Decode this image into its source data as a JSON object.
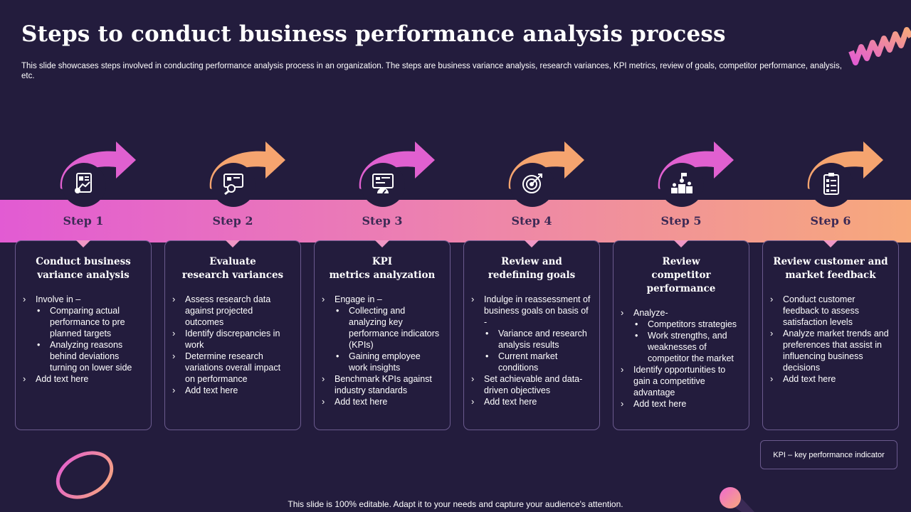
{
  "title": "Steps to conduct business performance analysis process",
  "subtitle": "This slide showcases steps involved in conducting performance analysis process in an organization. The steps are business variance analysis, research variances, KPI metrics, review of goals, competitor performance, analysis, etc.",
  "colors": {
    "background": "#231c3d",
    "band_start": "#e25bd3",
    "band_end": "#f7a97b",
    "arrow_pink": "#e060d0",
    "arrow_orange": "#f5a46f"
  },
  "steps": [
    {
      "label": "Step 1",
      "icon": "report-chart-icon",
      "title_line1": "Conduct business",
      "title_line2": "variance analysis",
      "items": [
        {
          "type": "li",
          "text": "Involve  in –"
        },
        {
          "type": "sub",
          "text": "Comparing actual performance to pre planned targets"
        },
        {
          "type": "sub",
          "text": "Analyzing reasons behind deviations turning on lower side"
        },
        {
          "type": "li",
          "text": "Add text here"
        }
      ]
    },
    {
      "label": "Step 2",
      "icon": "research-magnifier-icon",
      "title_line1": "Evaluate",
      "title_line2": "research variances",
      "items": [
        {
          "type": "li",
          "text": "Assess research data against projected outcomes"
        },
        {
          "type": "li",
          "text": "Identify discrepancies in work"
        },
        {
          "type": "li",
          "text": "Determine research variations overall impact on performance"
        },
        {
          "type": "li",
          "text": "Add text here"
        }
      ]
    },
    {
      "label": "Step 3",
      "icon": "kpi-dashboard-icon",
      "title_line1": "KPI",
      "title_line2": "metrics analyzation",
      "items": [
        {
          "type": "li",
          "text": "Engage in –"
        },
        {
          "type": "sub",
          "text": "Collecting and analyzing key performance indicators (KPIs)"
        },
        {
          "type": "sub",
          "text": "Gaining employee work insights"
        },
        {
          "type": "li",
          "text": "Benchmark KPIs against industry standards"
        },
        {
          "type": "li",
          "text": "Add text here"
        }
      ]
    },
    {
      "label": "Step 4",
      "icon": "target-icon",
      "title_line1": "Review and",
      "title_line2": "redefining goals",
      "items": [
        {
          "type": "li",
          "text": "Indulge in reassessment of business goals on basis of -"
        },
        {
          "type": "sub",
          "text": "Variance and research analysis results"
        },
        {
          "type": "sub",
          "text": "Current market conditions"
        },
        {
          "type": "li",
          "text": "Set achievable and data-driven objectives"
        },
        {
          "type": "li",
          "text": "Add text here"
        }
      ]
    },
    {
      "label": "Step 5",
      "icon": "podium-icon",
      "title_line1": "Review",
      "title_line2": "competitor performance",
      "items": [
        {
          "type": "li",
          "text": "Analyze-"
        },
        {
          "type": "sub",
          "text": " Competitors strategies"
        },
        {
          "type": "sub",
          "text": "Work strengths, and weaknesses of competitor the market"
        },
        {
          "type": "li",
          "text": "Identify opportunities to gain a competitive advantage"
        },
        {
          "type": "li",
          "text": "Add text here"
        }
      ]
    },
    {
      "label": "Step 6",
      "icon": "checklist-icon",
      "title_line1": "Review customer and",
      "title_line2": "market feedback",
      "items": [
        {
          "type": "li",
          "text": "Conduct customer feedback to assess satisfaction levels"
        },
        {
          "type": "li",
          "text": "Analyze market trends and preferences that assist in influencing business decisions"
        },
        {
          "type": "li",
          "text": "Add text here"
        }
      ]
    }
  ],
  "kpi_note": "KPI – key performance indicator",
  "footer": "This slide is 100% editable. Adapt it to your needs and capture your audience's attention."
}
